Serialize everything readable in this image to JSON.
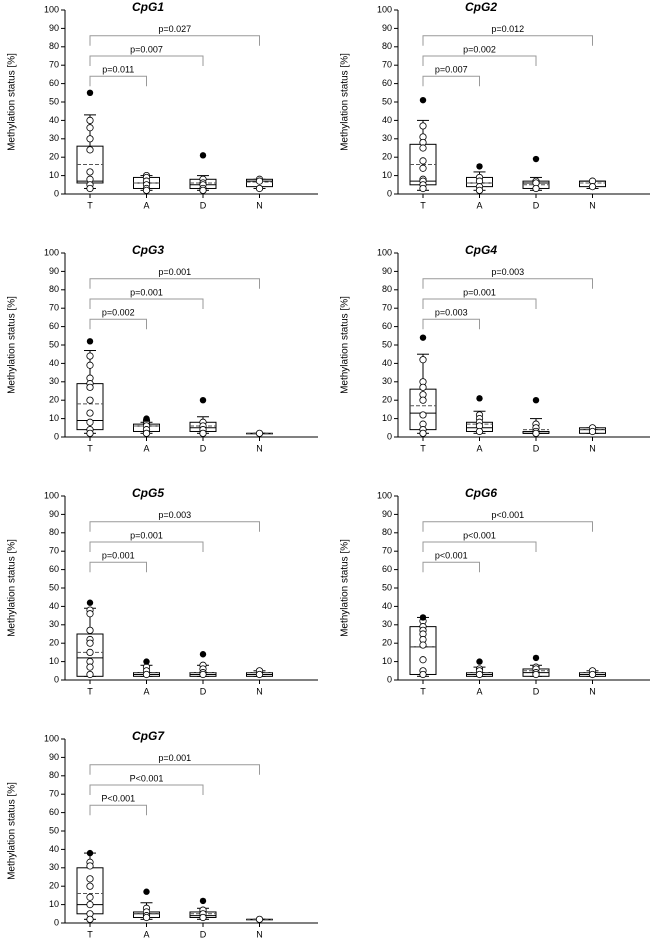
{
  "chart_data": [
    {
      "type": "box",
      "title": "CpG1",
      "y_label": "Methylation status [%]",
      "categories": [
        "T",
        "A",
        "D",
        "N"
      ],
      "ylim": [
        0,
        100
      ],
      "yticks": [
        0,
        10,
        20,
        30,
        40,
        50,
        60,
        70,
        80,
        90,
        100
      ],
      "boxes": [
        {
          "whislo": 3,
          "q1": 6,
          "med": 7,
          "mean": 16,
          "q3": 26,
          "whishi": 43,
          "points": [
            40,
            36,
            30,
            24,
            12,
            8,
            5,
            3
          ],
          "outliers": [
            55
          ]
        },
        {
          "whislo": 2,
          "q1": 3,
          "med": 6,
          "mean": 6,
          "q3": 9,
          "whishi": 10,
          "points": [
            10,
            9,
            7,
            5,
            3,
            2
          ],
          "outliers": []
        },
        {
          "whislo": 2,
          "q1": 3,
          "med": 5,
          "mean": 6,
          "q3": 8,
          "whishi": 10,
          "points": [
            8,
            6,
            5,
            3,
            2
          ],
          "outliers": [
            21
          ]
        },
        {
          "whislo": 3,
          "q1": 4,
          "med": 7,
          "mean": 6.5,
          "q3": 8,
          "whishi": 8,
          "points": [
            8,
            7,
            3
          ],
          "outliers": []
        }
      ],
      "comparisons": [
        "p=0.011",
        "p=0.007",
        "p=0.027"
      ]
    },
    {
      "type": "box",
      "title": "CpG2",
      "y_label": "Methylation status [%]",
      "categories": [
        "T",
        "A",
        "D",
        "N"
      ],
      "ylim": [
        0,
        100
      ],
      "yticks": [
        0,
        10,
        20,
        30,
        40,
        50,
        60,
        70,
        80,
        90,
        100
      ],
      "boxes": [
        {
          "whislo": 2,
          "q1": 5,
          "med": 7,
          "mean": 16,
          "q3": 27,
          "whishi": 40,
          "points": [
            37,
            31,
            28,
            25,
            18,
            14,
            8,
            7,
            5,
            3
          ],
          "outliers": [
            51
          ]
        },
        {
          "whislo": 2,
          "q1": 4,
          "med": 6,
          "mean": 6,
          "q3": 9,
          "whishi": 12,
          "points": [
            9,
            7,
            4,
            2
          ],
          "outliers": [
            15
          ]
        },
        {
          "whislo": 2,
          "q1": 3,
          "med": 6,
          "mean": 5,
          "q3": 7,
          "whishi": 9,
          "points": [
            7,
            6,
            3
          ],
          "outliers": [
            19
          ]
        },
        {
          "whislo": 3,
          "q1": 4,
          "med": 7,
          "mean": 6,
          "q3": 7,
          "whishi": 7,
          "points": [
            7,
            4
          ],
          "outliers": []
        }
      ],
      "comparisons": [
        "p=0.007",
        "p=0.002",
        "p=0.012"
      ]
    },
    {
      "type": "box",
      "title": "CpG3",
      "y_label": "Methylation status [%]",
      "categories": [
        "T",
        "A",
        "D",
        "N"
      ],
      "ylim": [
        0,
        100
      ],
      "yticks": [
        0,
        10,
        20,
        30,
        40,
        50,
        60,
        70,
        80,
        90,
        100
      ],
      "boxes": [
        {
          "whislo": 2,
          "q1": 4,
          "med": 9,
          "mean": 18,
          "q3": 29,
          "whishi": 47,
          "points": [
            44,
            39,
            32,
            29,
            27,
            20,
            13,
            8,
            4,
            2
          ],
          "outliers": [
            52
          ]
        },
        {
          "whislo": 2,
          "q1": 3,
          "med": 6,
          "mean": 6,
          "q3": 7,
          "whishi": 8,
          "points": [
            9,
            8,
            7,
            6,
            4,
            2
          ],
          "outliers": [
            10
          ]
        },
        {
          "whislo": 2,
          "q1": 3,
          "med": 5,
          "mean": 6,
          "q3": 8,
          "whishi": 11,
          "points": [
            8,
            6,
            4,
            2
          ],
          "outliers": [
            20
          ]
        },
        {
          "whislo": 2,
          "q1": 2,
          "med": 2,
          "mean": 2,
          "q3": 2,
          "whishi": 2,
          "points": [
            2
          ],
          "outliers": []
        }
      ],
      "comparisons": [
        "p=0.002",
        "p=0.001",
        "p=0.001"
      ]
    },
    {
      "type": "box",
      "title": "CpG4",
      "y_label": "Methylation status [%]",
      "categories": [
        "T",
        "A",
        "D",
        "N"
      ],
      "ylim": [
        0,
        100
      ],
      "yticks": [
        0,
        10,
        20,
        30,
        40,
        50,
        60,
        70,
        80,
        90,
        100
      ],
      "boxes": [
        {
          "whislo": 2,
          "q1": 4,
          "med": 13,
          "mean": 17,
          "q3": 26,
          "whishi": 45,
          "points": [
            42,
            30,
            27,
            23,
            20,
            12,
            7,
            4,
            2
          ],
          "outliers": [
            54
          ]
        },
        {
          "whislo": 2,
          "q1": 3,
          "med": 5,
          "mean": 7,
          "q3": 8,
          "whishi": 14,
          "points": [
            12,
            10,
            8,
            6,
            3
          ],
          "outliers": [
            21
          ]
        },
        {
          "whislo": 2,
          "q1": 2,
          "med": 2,
          "mean": 4,
          "q3": 3,
          "whishi": 10,
          "points": [
            7,
            5,
            3,
            2
          ],
          "outliers": [
            20
          ]
        },
        {
          "whislo": 2,
          "q1": 2,
          "med": 4,
          "mean": 4,
          "q3": 5,
          "whishi": 5,
          "points": [
            5,
            3
          ],
          "outliers": []
        }
      ],
      "comparisons": [
        "p=0.003",
        "p=0.001",
        "p=0.003"
      ]
    },
    {
      "type": "box",
      "title": "CpG5",
      "y_label": "Methylation status [%]",
      "categories": [
        "T",
        "A",
        "D",
        "N"
      ],
      "ylim": [
        0,
        100
      ],
      "yticks": [
        0,
        10,
        20,
        30,
        40,
        50,
        60,
        70,
        80,
        90,
        100
      ],
      "boxes": [
        {
          "whislo": 2,
          "q1": 2,
          "med": 12,
          "mean": 15,
          "q3": 25,
          "whishi": 39,
          "points": [
            38,
            36,
            27,
            22,
            20,
            15,
            10,
            7,
            3
          ],
          "outliers": [
            42
          ]
        },
        {
          "whislo": 2,
          "q1": 2,
          "med": 3,
          "mean": 4,
          "q3": 4,
          "whishi": 8,
          "points": [
            7,
            5,
            3
          ],
          "outliers": [
            10
          ]
        },
        {
          "whislo": 2,
          "q1": 2,
          "med": 3,
          "mean": 4,
          "q3": 4,
          "whishi": 8,
          "points": [
            8,
            6,
            4,
            3
          ],
          "outliers": [
            14
          ]
        },
        {
          "whislo": 2,
          "q1": 2,
          "med": 3,
          "mean": 4,
          "q3": 4,
          "whishi": 5,
          "points": [
            5,
            3
          ],
          "outliers": []
        }
      ],
      "comparisons": [
        "p=0.001",
        "p=0.001",
        "p=0.003"
      ]
    },
    {
      "type": "box",
      "title": "CpG6",
      "y_label": "Methylation status [%]",
      "categories": [
        "T",
        "A",
        "D",
        "N"
      ],
      "ylim": [
        0,
        100
      ],
      "yticks": [
        0,
        10,
        20,
        30,
        40,
        50,
        60,
        70,
        80,
        90,
        100
      ],
      "boxes": [
        {
          "whislo": 2,
          "q1": 3,
          "med": 18,
          "mean": 18,
          "q3": 29,
          "whishi": 34,
          "points": [
            32,
            29,
            27,
            25,
            22,
            19,
            11,
            5,
            3
          ],
          "outliers": [
            34
          ]
        },
        {
          "whislo": 2,
          "q1": 2,
          "med": 3,
          "mean": 4,
          "q3": 4,
          "whishi": 7,
          "points": [
            6,
            5,
            3
          ],
          "outliers": [
            10
          ]
        },
        {
          "whislo": 2,
          "q1": 2,
          "med": 4,
          "mean": 5,
          "q3": 6,
          "whishi": 8,
          "points": [
            7,
            6,
            4,
            3
          ],
          "outliers": [
            12
          ]
        },
        {
          "whislo": 2,
          "q1": 2,
          "med": 3,
          "mean": 4,
          "q3": 4,
          "whishi": 5,
          "points": [
            5,
            3
          ],
          "outliers": []
        }
      ],
      "comparisons": [
        "p<0.001",
        "p<0.001",
        "p<0.001"
      ]
    },
    {
      "type": "box",
      "title": "CpG7",
      "y_label": "Methylation status [%]",
      "categories": [
        "T",
        "A",
        "D",
        "N"
      ],
      "ylim": [
        0,
        100
      ],
      "yticks": [
        0,
        10,
        20,
        30,
        40,
        50,
        60,
        70,
        80,
        90,
        100
      ],
      "boxes": [
        {
          "whislo": 2,
          "q1": 5,
          "med": 10,
          "mean": 16,
          "q3": 30,
          "whishi": 38,
          "points": [
            33,
            31,
            24,
            20,
            14,
            10,
            5,
            2
          ],
          "outliers": [
            38
          ]
        },
        {
          "whislo": 2,
          "q1": 3,
          "med": 5,
          "mean": 5,
          "q3": 6,
          "whishi": 11,
          "points": [
            8,
            6,
            4,
            3
          ],
          "outliers": [
            17
          ]
        },
        {
          "whislo": 2,
          "q1": 3,
          "med": 4,
          "mean": 5,
          "q3": 6,
          "whishi": 8,
          "points": [
            7,
            5,
            3
          ],
          "outliers": [
            12
          ]
        },
        {
          "whislo": 2,
          "q1": 2,
          "med": 2,
          "mean": 2,
          "q3": 2,
          "whishi": 2,
          "points": [
            2
          ],
          "outliers": []
        }
      ],
      "comparisons": [
        "P<0.001",
        "P<0.001",
        "p=0.001"
      ]
    }
  ]
}
